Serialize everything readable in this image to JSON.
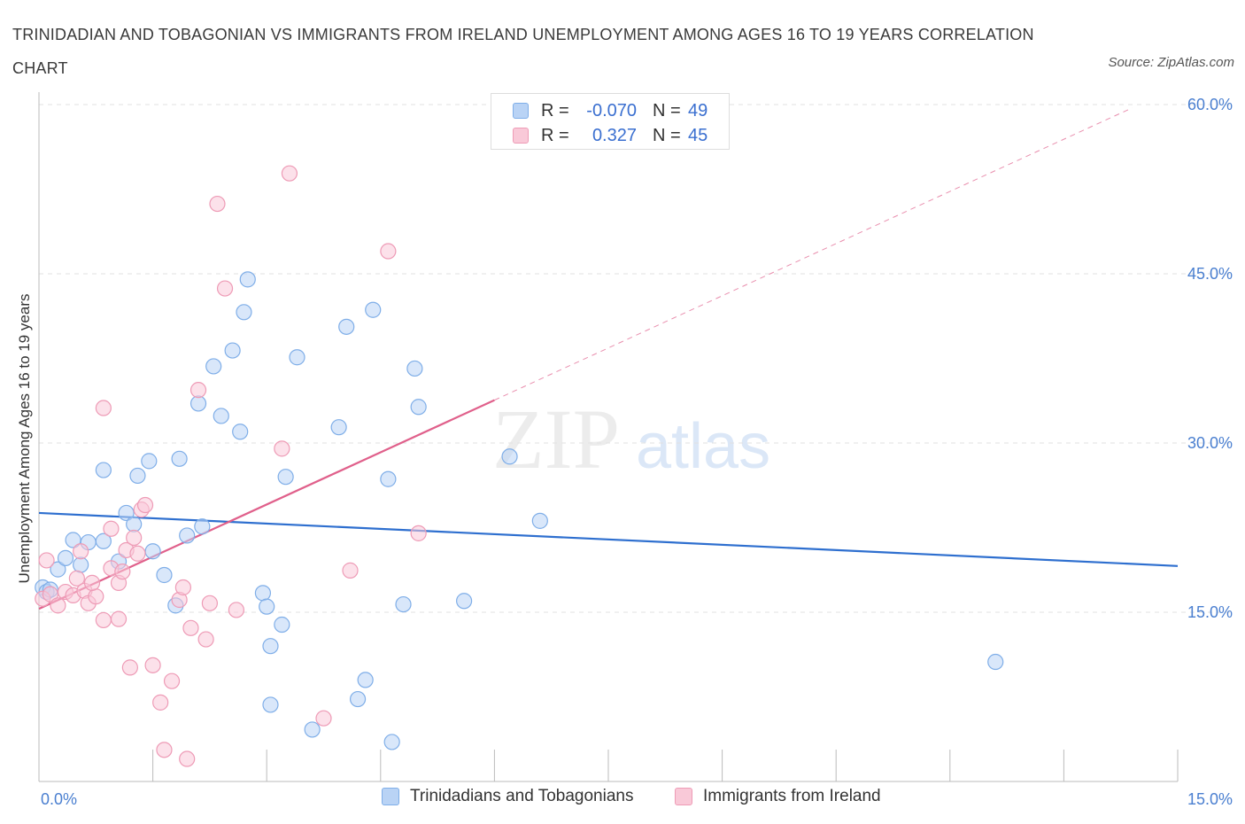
{
  "title": "TRINIDADIAN AND TOBAGONIAN VS IMMIGRANTS FROM IRELAND UNEMPLOYMENT AMONG AGES 16 TO 19 YEARS CORRELATION CHART",
  "source": "Source: ZipAtlas.com",
  "watermark": {
    "zip": "ZIP",
    "atlas": "atlas"
  },
  "legend": {
    "rows": [
      {
        "r_label": "R =",
        "r_value": "-0.070",
        "n_label": "N =",
        "n_value": "49",
        "fill": "#b9d3f5",
        "stroke": "#7faee8"
      },
      {
        "r_label": "R =",
        "r_value": "0.327",
        "n_label": "N =",
        "n_value": "45",
        "fill": "#f9c9d8",
        "stroke": "#ee9bb6"
      }
    ]
  },
  "bottom_legend": {
    "items": [
      {
        "label": "Trinidadians and Tobagonians",
        "fill": "#b9d3f5",
        "stroke": "#7faee8"
      },
      {
        "label": "Immigrants from Ireland",
        "fill": "#f9c9d8",
        "stroke": "#ee9bb6"
      }
    ]
  },
  "chart_data": {
    "type": "scatter",
    "title": "TRINIDADIAN AND TOBAGONIAN VS IMMIGRANTS FROM IRELAND UNEMPLOYMENT AMONG AGES 16 TO 19 YEARS CORRELATION CHART",
    "xlabel": "",
    "ylabel": "Unemployment Among Ages 16 to 19 years",
    "xlim": [
      0,
      15
    ],
    "ylim": [
      0,
      60
    ],
    "x_tick_labels": [
      "0.0%",
      "15.0%"
    ],
    "y_ticks": [
      15,
      30,
      45,
      60
    ],
    "y_tick_labels": [
      "15.0%",
      "30.0%",
      "45.0%",
      "60.0%"
    ],
    "grid": "horizontal dashed",
    "legend_position": "top-center",
    "series": [
      {
        "name": "Trinidadians and Tobagonians",
        "color": "#7faee8",
        "fill": "#b9d3f5",
        "line_color": "#2e6fcf",
        "trend": {
          "x": [
            0,
            15
          ],
          "y": [
            23.8,
            19.1
          ],
          "style": "solid"
        },
        "points": [
          [
            0.05,
            17.2
          ],
          [
            0.1,
            16.8
          ],
          [
            0.15,
            17.0
          ],
          [
            0.25,
            18.8
          ],
          [
            0.35,
            19.8
          ],
          [
            0.45,
            21.4
          ],
          [
            0.55,
            19.2
          ],
          [
            0.65,
            21.2
          ],
          [
            0.85,
            21.3
          ],
          [
            0.85,
            27.6
          ],
          [
            1.05,
            19.5
          ],
          [
            1.15,
            23.8
          ],
          [
            1.25,
            22.8
          ],
          [
            1.3,
            27.1
          ],
          [
            1.45,
            28.4
          ],
          [
            1.5,
            20.4
          ],
          [
            1.65,
            18.3
          ],
          [
            1.8,
            15.6
          ],
          [
            1.85,
            28.6
          ],
          [
            1.95,
            21.8
          ],
          [
            2.1,
            33.5
          ],
          [
            2.15,
            22.6
          ],
          [
            2.3,
            36.8
          ],
          [
            2.4,
            32.4
          ],
          [
            2.55,
            38.2
          ],
          [
            2.65,
            31.0
          ],
          [
            2.7,
            41.6
          ],
          [
            2.75,
            44.5
          ],
          [
            2.95,
            16.7
          ],
          [
            3.0,
            15.5
          ],
          [
            3.05,
            6.8
          ],
          [
            3.05,
            12.0
          ],
          [
            3.2,
            13.9
          ],
          [
            3.25,
            27.0
          ],
          [
            3.4,
            37.6
          ],
          [
            3.6,
            4.6
          ],
          [
            3.95,
            31.4
          ],
          [
            4.05,
            40.3
          ],
          [
            4.2,
            7.3
          ],
          [
            4.3,
            9.0
          ],
          [
            4.4,
            41.8
          ],
          [
            4.6,
            26.8
          ],
          [
            4.65,
            3.5
          ],
          [
            4.8,
            15.7
          ],
          [
            4.95,
            36.6
          ],
          [
            5.0,
            33.2
          ],
          [
            5.6,
            16.0
          ],
          [
            6.2,
            28.8
          ],
          [
            6.6,
            23.1
          ],
          [
            12.6,
            10.6
          ]
        ]
      },
      {
        "name": "Immigrants from Ireland",
        "color": "#ee9bb6",
        "fill": "#f9c9d8",
        "line_color": "#e0608b",
        "trend": {
          "x": [
            0,
            6.0
          ],
          "y": [
            15.3,
            33.8
          ],
          "style": "solid",
          "extended": {
            "x": [
              6.0,
              14.4
            ],
            "y": [
              33.8,
              59.7
            ],
            "style": "dashed"
          }
        },
        "points": [
          [
            0.05,
            16.2
          ],
          [
            0.15,
            16.6
          ],
          [
            0.25,
            15.6
          ],
          [
            0.35,
            16.8
          ],
          [
            0.45,
            16.5
          ],
          [
            0.5,
            18.0
          ],
          [
            0.55,
            20.4
          ],
          [
            0.6,
            16.9
          ],
          [
            0.65,
            15.8
          ],
          [
            0.75,
            16.4
          ],
          [
            0.7,
            17.6
          ],
          [
            0.85,
            14.3
          ],
          [
            0.85,
            33.1
          ],
          [
            0.95,
            18.9
          ],
          [
            0.95,
            22.4
          ],
          [
            1.05,
            14.4
          ],
          [
            1.05,
            17.6
          ],
          [
            1.1,
            18.6
          ],
          [
            1.15,
            20.5
          ],
          [
            1.2,
            10.1
          ],
          [
            1.25,
            21.6
          ],
          [
            1.3,
            20.2
          ],
          [
            1.35,
            24.1
          ],
          [
            1.4,
            24.5
          ],
          [
            1.5,
            10.3
          ],
          [
            1.6,
            7.0
          ],
          [
            1.65,
            2.8
          ],
          [
            1.75,
            8.9
          ],
          [
            1.85,
            16.1
          ],
          [
            1.9,
            17.2
          ],
          [
            1.95,
            2.0
          ],
          [
            2.0,
            13.6
          ],
          [
            2.1,
            34.7
          ],
          [
            2.2,
            12.6
          ],
          [
            2.25,
            15.8
          ],
          [
            2.35,
            51.2
          ],
          [
            2.45,
            43.7
          ],
          [
            2.6,
            15.2
          ],
          [
            3.2,
            29.5
          ],
          [
            3.3,
            53.9
          ],
          [
            3.75,
            5.6
          ],
          [
            4.1,
            18.7
          ],
          [
            4.6,
            47.0
          ],
          [
            5.0,
            22.0
          ],
          [
            0.1,
            19.6
          ]
        ]
      }
    ]
  }
}
